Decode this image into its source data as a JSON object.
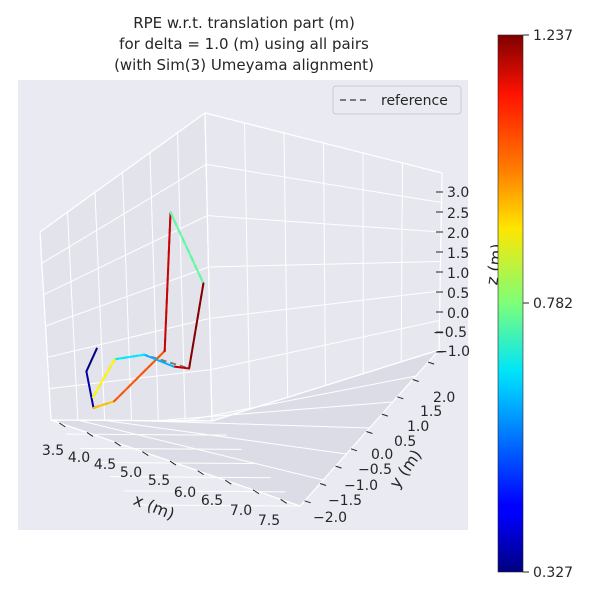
{
  "chart_data": {
    "type": "line",
    "projection": "3d",
    "title_lines": [
      "RPE w.r.t. translation part (m)",
      "for delta = 1.0 (m) using all pairs",
      "(with Sim(3) Umeyama alignment)"
    ],
    "xlabel": "x (m)",
    "ylabel": "y (m)",
    "zlabel": "z (m)",
    "x_ticks": [
      "3.5",
      "4.0",
      "4.5",
      "5.0",
      "5.5",
      "6.0",
      "6.5",
      "7.0",
      "7.5"
    ],
    "y_ticks": [
      "−2.0",
      "−1.5",
      "−1.0",
      "−0.5",
      "0.0",
      "0.5",
      "1.0",
      "1.5",
      "2.0"
    ],
    "z_ticks": [
      "3.0",
      "2.5",
      "2.0",
      "1.5",
      "1.0",
      "0.5",
      "0.0",
      "−0.5",
      "−1.0"
    ],
    "xlim": [
      3.3,
      7.7
    ],
    "ylim": [
      -2.2,
      2.4
    ],
    "zlim": [
      -1.3,
      3.3
    ],
    "grid": true,
    "legend": {
      "placement": "top-right",
      "entries": [
        "reference"
      ]
    },
    "colorbar": {
      "colormap": "jet",
      "min": 0.327,
      "max": 1.237,
      "tick_labels": [
        "1.237",
        "0.782",
        "0.327"
      ]
    },
    "series": [
      {
        "name": "reference",
        "style": "dashed",
        "color": "#7a7a7a",
        "points": [
          {
            "x": 3.7,
            "y": -1.2,
            "z": -1.0
          },
          {
            "x": 4.4,
            "y": -1.0,
            "z": -0.7
          },
          {
            "x": 4.9,
            "y": 0.2,
            "z": 0.2
          },
          {
            "x": 5.0,
            "y": 0.4,
            "z": 2.3
          },
          {
            "x": 6.6,
            "y": 0.4,
            "z": 1.7
          },
          {
            "x": 7.2,
            "y": -0.4,
            "z": 0.6
          },
          {
            "x": 5.1,
            "y": -0.5,
            "z": 0.2
          },
          {
            "x": 4.3,
            "y": -0.9,
            "z": -0.1
          },
          {
            "x": 3.5,
            "y": -1.1,
            "z": -0.9
          }
        ]
      },
      {
        "type": "colored_segments",
        "segments": [
          {
            "from": {
              "x": 3.4,
              "y": -0.9,
              "z": -0.2
            },
            "to": {
              "x": 3.2,
              "y": -1.1,
              "z": -0.6
            },
            "error": 0.33
          },
          {
            "from": {
              "x": 3.2,
              "y": -1.1,
              "z": -0.6
            },
            "to": {
              "x": 3.7,
              "y": -1.2,
              "z": -1.0
            },
            "error": 0.36
          },
          {
            "from": {
              "x": 3.7,
              "y": -1.2,
              "z": -1.0
            },
            "to": {
              "x": 4.4,
              "y": -1.0,
              "z": -0.7
            },
            "error": 0.95
          },
          {
            "from": {
              "x": 4.4,
              "y": -1.0,
              "z": -0.7
            },
            "to": {
              "x": 4.9,
              "y": 0.2,
              "z": 0.2
            },
            "error": 1.05
          },
          {
            "from": {
              "x": 4.9,
              "y": 0.2,
              "z": 0.2
            },
            "to": {
              "x": 5.0,
              "y": 0.4,
              "z": 2.3
            },
            "error": 1.17
          },
          {
            "from": {
              "x": 5.0,
              "y": 0.4,
              "z": 2.3
            },
            "to": {
              "x": 6.6,
              "y": 0.4,
              "z": 1.7
            },
            "error": 0.75
          },
          {
            "from": {
              "x": 6.6,
              "y": 0.4,
              "z": 1.7
            },
            "to": {
              "x": 7.2,
              "y": -0.4,
              "z": 0.6
            },
            "error": 1.23
          },
          {
            "from": {
              "x": 7.2,
              "y": -0.4,
              "z": 0.6
            },
            "to": {
              "x": 6.4,
              "y": -0.4,
              "z": 0.4
            },
            "error": 1.18
          },
          {
            "from": {
              "x": 6.4,
              "y": -0.4,
              "z": 0.4
            },
            "to": {
              "x": 5.1,
              "y": -0.5,
              "z": 0.2
            },
            "error": 0.6
          },
          {
            "from": {
              "x": 5.1,
              "y": -0.5,
              "z": 0.2
            },
            "to": {
              "x": 4.3,
              "y": -0.9,
              "z": -0.1
            },
            "error": 0.65
          },
          {
            "from": {
              "x": 4.3,
              "y": -0.9,
              "z": -0.1
            },
            "to": {
              "x": 3.5,
              "y": -1.1,
              "z": -0.9
            },
            "error": 0.9
          }
        ]
      }
    ]
  }
}
